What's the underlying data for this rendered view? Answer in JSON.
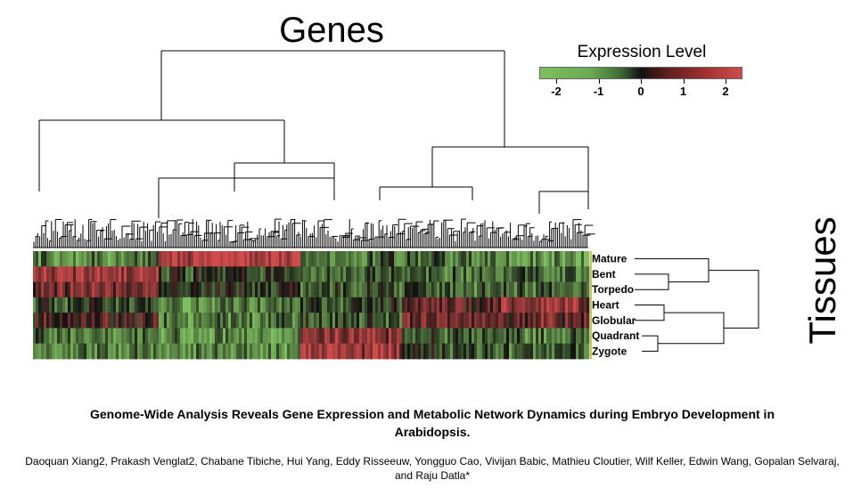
{
  "figure": {
    "genes_title": "Genes",
    "tissues_title": "Tissues",
    "legend_title": "Expression Level"
  },
  "paper": {
    "title": "Genome-Wide Analysis Reveals Gene Expression and Metabolic Network Dynamics during Embryo Development in Arabidopsis.",
    "authors": "Daoquan Xiang2, Prakash Venglat2, Chabane Tibiche, Hui Yang, Eddy Risseeuw, Yongguo Cao, Vivijan Babic, Mathieu Cloutier, Wilf Keller, Edwin Wang, Gopalan Selvaraj, and Raju Datla*"
  },
  "chart_data": {
    "type": "heatmap",
    "title": "Expression Level",
    "xlabel": "Genes",
    "ylabel": "Tissues",
    "color_scale": {
      "ticks": [
        -2,
        -1,
        0,
        1,
        2
      ],
      "range": [
        -2.4,
        2.4
      ],
      "colors": {
        "low": "#7fbf5f",
        "mid": "#111111",
        "high": "#d04b4b"
      }
    },
    "rows": [
      "Mature",
      "Bent",
      "Torpedo",
      "Heart",
      "Globular",
      "Quadrant",
      "Zygote"
    ],
    "gene_clusters": [
      {
        "profile": [
          -1.4,
          1.6,
          1.2,
          -0.6,
          0.4,
          -1.2,
          -1.3
        ]
      },
      {
        "profile": [
          2.0,
          -0.5,
          -0.4,
          -1.3,
          -1.2,
          -1.5,
          -1.5
        ]
      },
      {
        "profile": [
          -1.0,
          -0.9,
          -0.8,
          -0.6,
          -0.7,
          1.4,
          1.6
        ]
      },
      {
        "profile": [
          -1.0,
          -1.0,
          -0.9,
          0.8,
          1.0,
          -0.8,
          -0.6
        ]
      },
      {
        "profile": [
          -1.6,
          -1.0,
          -1.0,
          1.4,
          0.9,
          -1.1,
          -0.9
        ]
      }
    ],
    "tissue_dendrogram": {
      "merges": [
        [
          "Bent",
          "Torpedo"
        ],
        [
          "Quadrant",
          "Zygote"
        ],
        [
          "Heart",
          "Globular"
        ],
        [
          "Mature",
          "Bent+Torpedo"
        ],
        [
          "Heart+Globular",
          "Quadrant+Zygote"
        ],
        [
          "all"
        ]
      ]
    }
  }
}
